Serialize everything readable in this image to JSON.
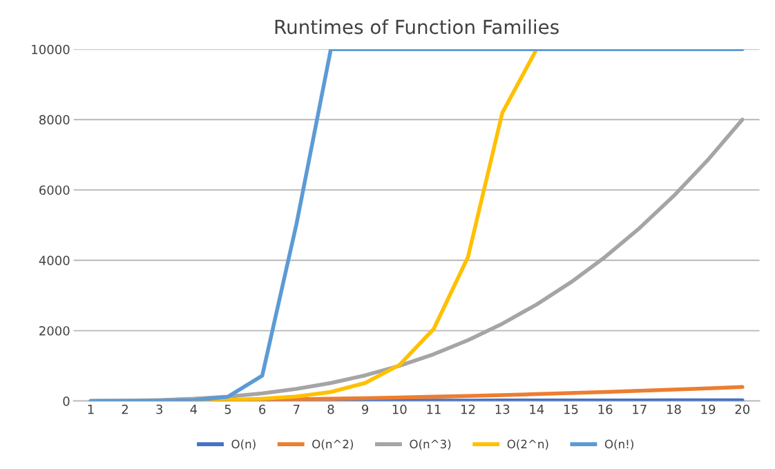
{
  "chart_data": {
    "type": "line",
    "title": "Runtimes of Function Families",
    "categories": [
      "1",
      "2",
      "3",
      "4",
      "5",
      "6",
      "7",
      "8",
      "9",
      "10",
      "11",
      "12",
      "13",
      "14",
      "15",
      "16",
      "17",
      "18",
      "19",
      "20"
    ],
    "series": [
      {
        "name": "O(n)",
        "color": "#4472c4",
        "values": [
          1,
          2,
          3,
          4,
          5,
          6,
          7,
          8,
          9,
          10,
          11,
          12,
          13,
          14,
          15,
          16,
          17,
          18,
          19,
          20
        ]
      },
      {
        "name": "O(n^2)",
        "color": "#ed7d31",
        "values": [
          null,
          null,
          9,
          16,
          25,
          36,
          49,
          64,
          81,
          100,
          121,
          144,
          169,
          196,
          225,
          256,
          289,
          324,
          361,
          400
        ]
      },
      {
        "name": "O(n^3)",
        "color": "#a5a5a5",
        "values": [
          1,
          8,
          27,
          64,
          125,
          216,
          343,
          512,
          729,
          1000,
          1331,
          1728,
          2197,
          2744,
          3375,
          4096,
          4913,
          5832,
          6859,
          8000
        ]
      },
      {
        "name": "O(2^n)",
        "color": "#ffc000",
        "values": [
          null,
          null,
          null,
          16,
          32,
          64,
          128,
          256,
          512,
          1024,
          2048,
          4096,
          8192,
          10000,
          null,
          null,
          null,
          null,
          null,
          null
        ]
      },
      {
        "name": "O(n!)",
        "color": "#5b9bd5",
        "values": [
          1,
          2,
          6,
          24,
          120,
          720,
          5040,
          10000,
          10000,
          10000,
          10000,
          10000,
          10000,
          10000,
          10000,
          10000,
          10000,
          10000,
          10000,
          10000
        ]
      }
    ],
    "ylim": [
      0,
      10000
    ],
    "yticks": [
      0,
      2000,
      4000,
      6000,
      8000,
      10000
    ],
    "grid": "y",
    "legend": "bottom",
    "marker": "none",
    "line_style": "solid"
  }
}
